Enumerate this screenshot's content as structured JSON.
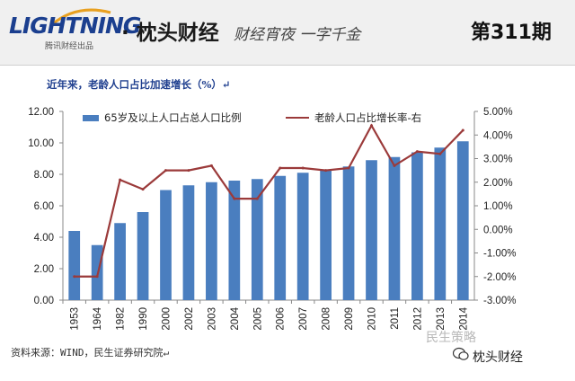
{
  "header": {
    "logo": "LIGHTNING",
    "logo_sub": "腾讯财经出品",
    "brand": "· 枕头财经",
    "slogan": "财经宵夜 一字千金",
    "issue": "第311期"
  },
  "caption": "近年来，老龄人口占比加速增长（%）↵",
  "source": "资料来源：WIND，民生证券研究院↵",
  "watermark": {
    "line1": "民生策略",
    "line2": "枕头财经"
  },
  "colors": {
    "bar": "#4a7ebf",
    "line": "#9b3a3a",
    "caption": "#1f3f8f"
  },
  "chart_data": {
    "type": "bar",
    "categories": [
      "1953",
      "1964",
      "1982",
      "1990",
      "2000",
      "2002",
      "2003",
      "2004",
      "2005",
      "2006",
      "2007",
      "2008",
      "2009",
      "2010",
      "2011",
      "2012",
      "2013",
      "2014"
    ],
    "series": [
      {
        "name": "65岁及以上人口占总人口比例",
        "type": "bar",
        "axis": "left",
        "values": [
          4.4,
          3.5,
          4.9,
          5.6,
          7.0,
          7.3,
          7.5,
          7.6,
          7.7,
          7.9,
          8.1,
          8.3,
          8.5,
          8.9,
          9.1,
          9.4,
          9.7,
          10.1
        ]
      },
      {
        "name": "老龄人口占比增长率-右",
        "type": "line",
        "axis": "right",
        "values": [
          -2.0,
          -2.0,
          2.1,
          1.7,
          2.5,
          2.5,
          2.7,
          1.3,
          1.3,
          2.6,
          2.6,
          2.5,
          2.6,
          4.4,
          2.7,
          3.3,
          3.2,
          4.2
        ]
      }
    ],
    "left_axis": {
      "min": 0,
      "max": 12,
      "step": 2,
      "ticks": [
        "0.00",
        "2.00",
        "4.00",
        "6.00",
        "8.00",
        "10.00",
        "12.00"
      ]
    },
    "right_axis": {
      "min": -3,
      "max": 5,
      "step": 1,
      "ticks": [
        "-3.00%",
        "-2.00%",
        "-1.00%",
        "0.00%",
        "1.00%",
        "2.00%",
        "3.00%",
        "4.00%",
        "5.00%"
      ]
    },
    "legend_position": "top",
    "grid": false,
    "title": "",
    "xlabel": "",
    "ylabel": ""
  }
}
